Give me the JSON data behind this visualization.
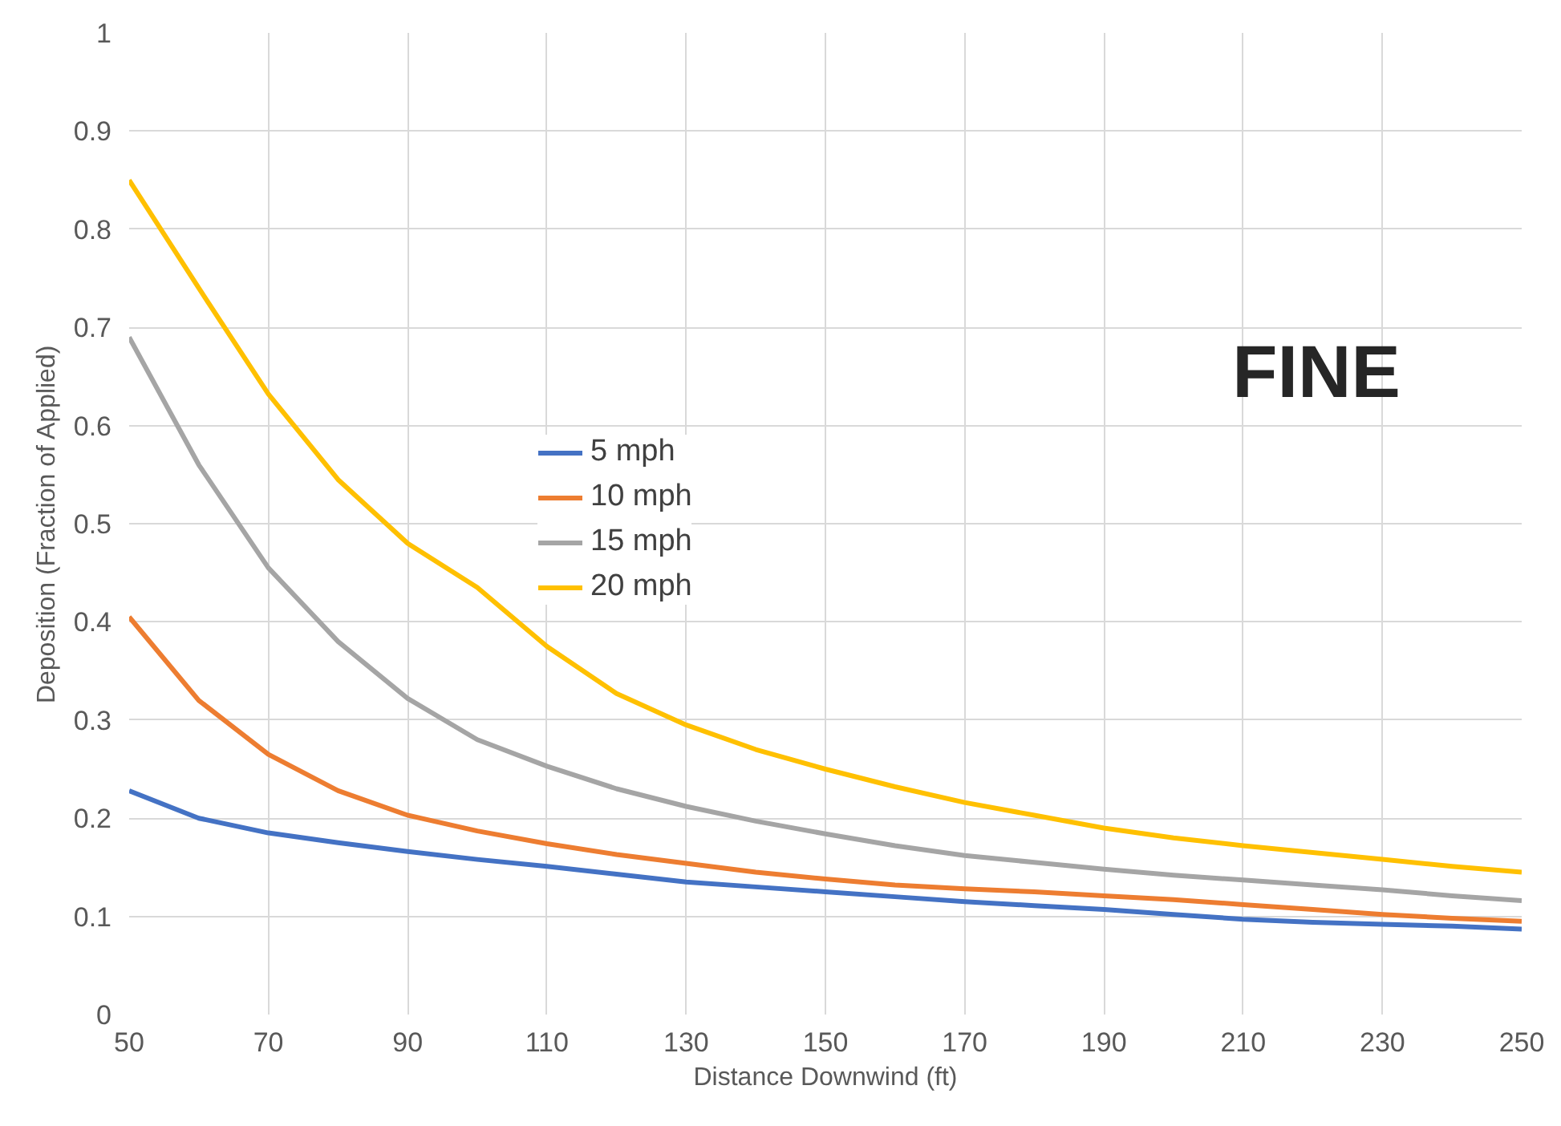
{
  "chart_data": {
    "type": "line",
    "xlabel": "Distance Downwind (ft)",
    "ylabel": "Deposition (Fraction of Applied)",
    "annotations": [
      "FINE"
    ],
    "x": [
      50,
      60,
      70,
      80,
      90,
      100,
      110,
      120,
      130,
      140,
      150,
      160,
      170,
      180,
      190,
      200,
      210,
      220,
      230,
      240,
      250
    ],
    "series": [
      {
        "name": "5 mph",
        "color": "#4472c4",
        "values": [
          0.228,
          0.2,
          0.185,
          0.175,
          0.166,
          0.158,
          0.151,
          0.143,
          0.135,
          0.13,
          0.125,
          0.12,
          0.115,
          0.111,
          0.107,
          0.102,
          0.097,
          0.094,
          0.092,
          0.09,
          0.087
        ]
      },
      {
        "name": "10 mph",
        "color": "#ed7d31",
        "values": [
          0.405,
          0.32,
          0.265,
          0.228,
          0.203,
          0.187,
          0.174,
          0.163,
          0.154,
          0.145,
          0.138,
          0.132,
          0.128,
          0.125,
          0.121,
          0.117,
          0.112,
          0.107,
          0.102,
          0.098,
          0.095
        ]
      },
      {
        "name": "15 mph",
        "color": "#a5a5a5",
        "values": [
          0.69,
          0.56,
          0.455,
          0.38,
          0.322,
          0.28,
          0.253,
          0.23,
          0.212,
          0.197,
          0.184,
          0.172,
          0.162,
          0.155,
          0.148,
          0.142,
          0.137,
          0.132,
          0.127,
          0.121,
          0.116
        ]
      },
      {
        "name": "20 mph",
        "color": "#ffc000",
        "values": [
          0.85,
          0.74,
          0.632,
          0.545,
          0.48,
          0.435,
          0.375,
          0.327,
          0.295,
          0.27,
          0.25,
          0.232,
          0.216,
          0.203,
          0.19,
          0.18,
          0.172,
          0.165,
          0.158,
          0.151,
          0.145
        ]
      }
    ],
    "xlim": [
      50,
      250
    ],
    "xticks": [
      50,
      70,
      90,
      110,
      130,
      150,
      170,
      190,
      210,
      230,
      250
    ],
    "ylim": [
      0,
      1
    ],
    "yticks": [
      0,
      0.1,
      0.2,
      0.3,
      0.4,
      0.5,
      0.6,
      0.7,
      0.8,
      0.9,
      1
    ],
    "grid": true,
    "legend": "left",
    "marker": "none",
    "line_style": "solid"
  }
}
